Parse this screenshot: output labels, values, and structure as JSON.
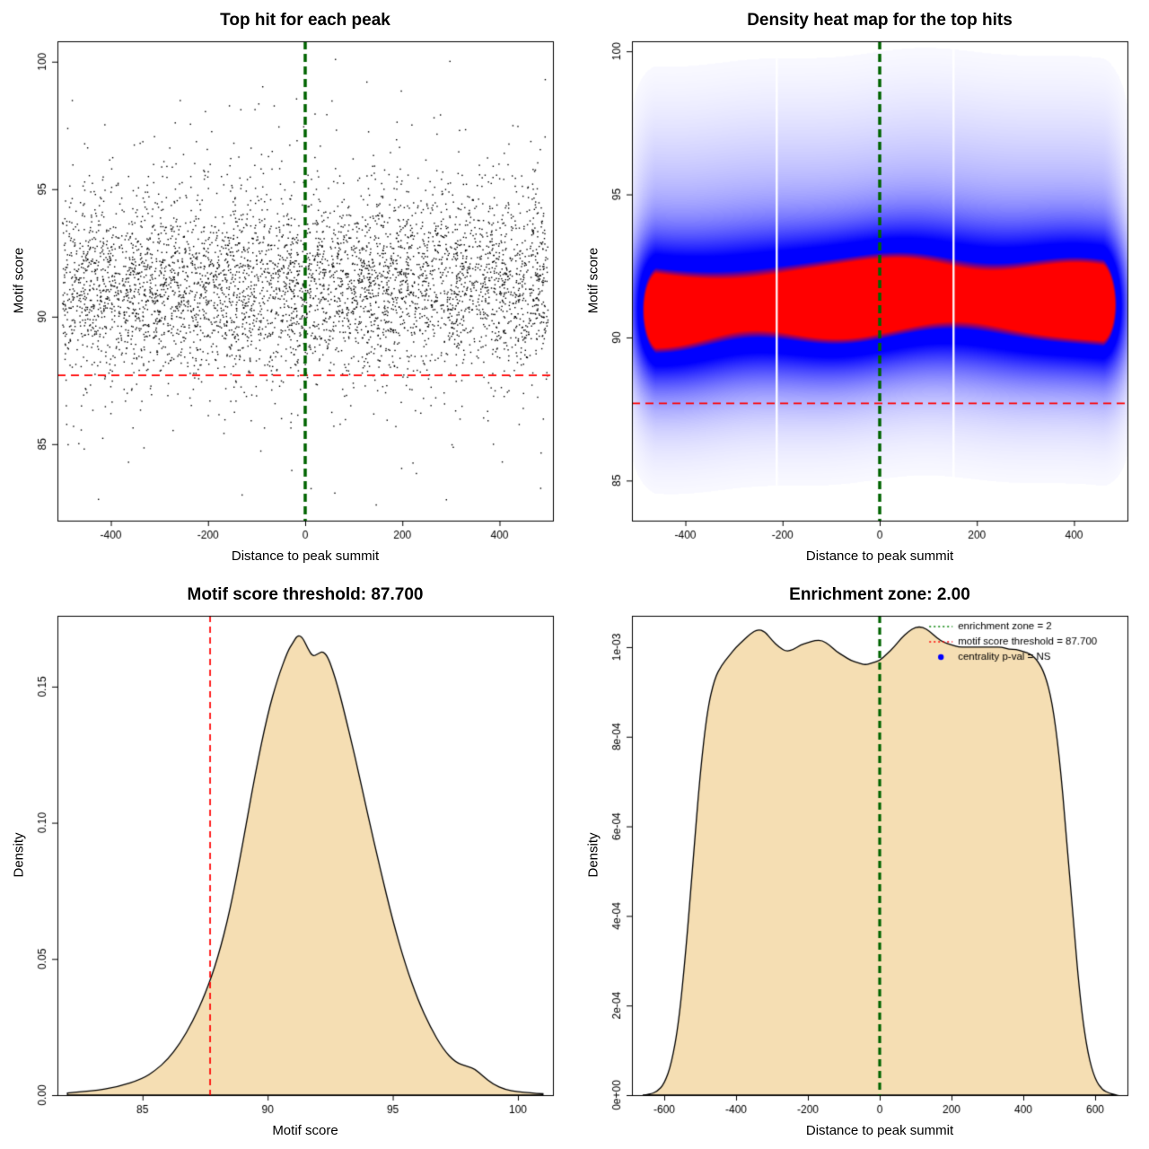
{
  "colors": {
    "background": "#ffffff",
    "frame": "#000000",
    "text": "#000000",
    "point": "#000000",
    "threshold_line": "#ff0000",
    "zone_line": "#006400",
    "legend_zone": "#008000",
    "legend_threshold": "#ff0000",
    "legend_pval": "#0000ff",
    "density_fill": "#f5deb3",
    "density_stroke": "#000000"
  },
  "chart_data": [
    {
      "type": "scatter",
      "title": "Top hit for each peak",
      "xlabel": "Distance to peak summit",
      "ylabel": "Motif score",
      "xlim": [
        -510,
        510
      ],
      "ylim": [
        82,
        100.8
      ],
      "xticks": [
        -400,
        -200,
        0,
        200,
        400
      ],
      "yticks": [
        85,
        90,
        95,
        100
      ],
      "n_points_approx": 4800,
      "seed": 42,
      "x_range": [
        -500,
        500
      ],
      "y_distribution": [
        {
          "w": 0.75,
          "mean": 91.1,
          "sd": 1.65
        },
        {
          "w": 0.2,
          "mean": 92.6,
          "sd": 2.6
        },
        {
          "w": 0.05,
          "mean": 88.8,
          "sd": 2.6
        }
      ],
      "y_clip": [
        82.3,
        100.5
      ],
      "vline": {
        "x": 0,
        "color_key": "zone_line",
        "width": 3.5,
        "dash": [
          9,
          5
        ]
      },
      "hline": {
        "y": 87.7,
        "color_key": "threshold_line",
        "width": 1.7,
        "dash": [
          9,
          6
        ]
      }
    },
    {
      "type": "heatmap",
      "title": "Density heat map for the top hits",
      "xlabel": "Distance to peak summit",
      "ylabel": "Motif score",
      "xlim": [
        -510,
        510
      ],
      "ylim": [
        83.6,
        100.35
      ],
      "xticks": [
        -400,
        -200,
        0,
        200,
        400
      ],
      "yticks": [
        85,
        90,
        95,
        100
      ],
      "band_center": 91.2,
      "band_sd": 1.6,
      "red_core_score_range": [
        90.2,
        92.3
      ],
      "blue_band_score_range": [
        88,
        95
      ],
      "x_extent": [
        -500,
        500
      ],
      "white_gaps_x": [
        -212,
        152
      ],
      "vline": {
        "x": 0,
        "color_key": "zone_line",
        "width": 3.5,
        "dash": [
          9,
          5
        ]
      },
      "hline": {
        "y": 87.7,
        "color_key": "threshold_line",
        "width": 1.7,
        "dash": [
          9,
          6
        ]
      }
    },
    {
      "type": "area",
      "title": "Motif score threshold: 87.700",
      "xlabel": "Motif score",
      "ylabel": "Density",
      "xlim": [
        81.6,
        101.4
      ],
      "ylim": [
        0,
        0.176
      ],
      "xticks": [
        85,
        90,
        95,
        100
      ],
      "yticks": [
        0,
        0.05,
        0.1,
        0.15
      ],
      "ytick_labels": [
        "0.00",
        "0.05",
        "0.10",
        "0.15"
      ],
      "curve_x": [
        82,
        83,
        84,
        85,
        85.5,
        86,
        86.5,
        87,
        87.5,
        88,
        88.5,
        89,
        89.5,
        90,
        90.4,
        90.8,
        91,
        91.2,
        91.4,
        91.6,
        91.8,
        92,
        92.2,
        92.4,
        92.6,
        92.8,
        93,
        93.5,
        94,
        94.5,
        95,
        95.5,
        96,
        96.5,
        97,
        97.5,
        98,
        98.3,
        98.6,
        99,
        99.5,
        100,
        100.5,
        101
      ],
      "curve_y": [
        0.0008,
        0.0015,
        0.003,
        0.006,
        0.009,
        0.013,
        0.019,
        0.027,
        0.037,
        0.05,
        0.068,
        0.092,
        0.118,
        0.14,
        0.153,
        0.163,
        0.166,
        0.169,
        0.168,
        0.164,
        0.161,
        0.162,
        0.163,
        0.161,
        0.156,
        0.15,
        0.143,
        0.124,
        0.103,
        0.083,
        0.064,
        0.048,
        0.035,
        0.025,
        0.017,
        0.012,
        0.0105,
        0.0095,
        0.007,
        0.004,
        0.002,
        0.0012,
        0.0008,
        0.0005
      ],
      "vline": {
        "x": 87.7,
        "color_key": "threshold_line",
        "width": 1.7,
        "dash": [
          7,
          5
        ]
      }
    },
    {
      "type": "area",
      "title": "Enrichment zone: 2.00",
      "xlabel": "Distance to peak summit",
      "ylabel": "Density",
      "xlim": [
        -690,
        690
      ],
      "ylim": [
        0,
        0.00107
      ],
      "xticks": [
        -600,
        -400,
        -200,
        0,
        200,
        400,
        600
      ],
      "yticks": [
        0,
        0.0002,
        0.0004,
        0.0006,
        0.0008,
        0.001
      ],
      "ytick_labels": [
        "0e+00",
        "2e-04",
        "4e-04",
        "6e-04",
        "8e-04",
        "1e-03"
      ],
      "curve_x": [
        -660,
        -640,
        -620,
        -600,
        -580,
        -560,
        -540,
        -520,
        -500,
        -480,
        -460,
        -440,
        -420,
        -400,
        -380,
        -360,
        -340,
        -320,
        -300,
        -280,
        -260,
        -240,
        -220,
        -200,
        -180,
        -160,
        -140,
        -120,
        -100,
        -80,
        -60,
        -40,
        -20,
        0,
        20,
        40,
        60,
        80,
        100,
        120,
        140,
        160,
        180,
        200,
        220,
        240,
        260,
        280,
        300,
        320,
        340,
        360,
        380,
        400,
        420,
        440,
        460,
        480,
        500,
        520,
        540,
        560,
        580,
        600,
        620,
        640,
        660
      ],
      "curve_y": [
        0,
        2e-06,
        8e-06,
        2.5e-05,
        7e-05,
        0.00016,
        0.00032,
        0.00052,
        0.00072,
        0.00086,
        0.00093,
        0.00096,
        0.00098,
        0.001,
        0.001015,
        0.00103,
        0.00104,
        0.001035,
        0.001015,
        0.001,
        0.00099,
        0.000995,
        0.001005,
        0.00101,
        0.001015,
        0.001015,
        0.001005,
        0.00099,
        0.00098,
        0.00097,
        0.000965,
        0.00096,
        0.000965,
        0.00097,
        0.000985,
        0.001,
        0.00102,
        0.001035,
        0.001045,
        0.001045,
        0.001035,
        0.00102,
        0.00101,
        0.001005,
        0.001,
        0.001,
        0.001,
        0.001,
        0.001,
        0.001,
        0.001,
        0.000995,
        0.000995,
        0.00099,
        0.000985,
        0.00097,
        0.00094,
        0.00088,
        0.00076,
        0.00058,
        0.00038,
        0.0002,
        9e-05,
        3.5e-05,
        1.2e-05,
        4e-06,
        0
      ],
      "vline": {
        "x": 0,
        "color_key": "zone_line",
        "width": 3.2,
        "dash": [
          8,
          5
        ]
      },
      "legend": {
        "items": [
          {
            "label": "enrichment zone = 2",
            "color_key": "legend_zone",
            "marker": "dotted-line"
          },
          {
            "label": "motif score threshold = 87.700",
            "color_key": "legend_threshold",
            "marker": "dotted-line"
          },
          {
            "label": "centrality p-val = NS",
            "color_key": "legend_pval",
            "marker": "point"
          }
        ]
      }
    }
  ]
}
